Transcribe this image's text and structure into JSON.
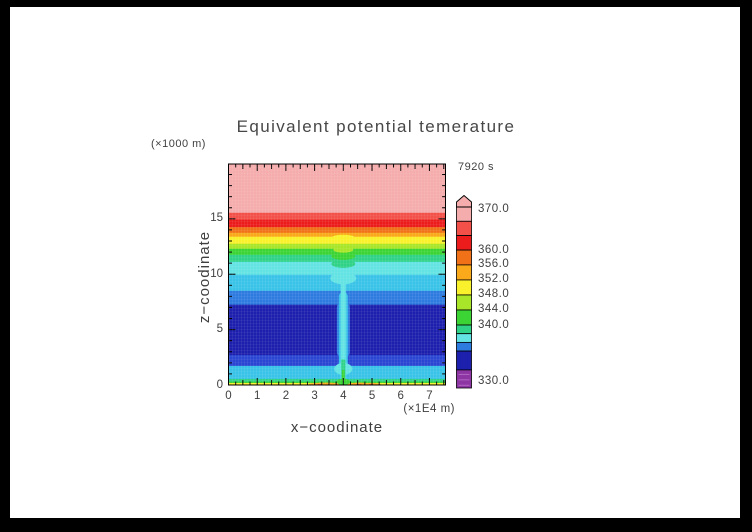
{
  "window": {
    "frame_color": "#000000",
    "page_color": "#ffffff"
  },
  "header": {
    "title": "Equivalent potential temerature",
    "y_axis_unit": "(×1000 m)",
    "time_label": "7920 s"
  },
  "axes": {
    "x": {
      "label": "x−coodinate",
      "unit": "(×1E4 m)",
      "tick_labels": [
        "0",
        "1",
        "2",
        "3",
        "4",
        "5",
        "6",
        "7"
      ],
      "tick_values": [
        0,
        1,
        2,
        3,
        4,
        5,
        6,
        7
      ],
      "range": [
        0,
        7.56
      ],
      "minor_step": 0.25
    },
    "z": {
      "label": "z−coodinate",
      "tick_labels": [
        "0",
        "5",
        "10",
        "15"
      ],
      "tick_values": [
        0,
        5,
        10,
        15
      ],
      "range": [
        0,
        19.95
      ],
      "minor_step": 1
    }
  },
  "chart_data": {
    "type": "heatmap",
    "title": "Equivalent potential temerature",
    "time": "7920 s",
    "x_range": [
      0,
      7.56
    ],
    "z_range": [
      0,
      19.95
    ],
    "palette": {
      "pink": "#F5ACAC",
      "salmon": "#F25048",
      "red": "#EC1C1C",
      "orangered": "#F07118",
      "orange": "#F9A919",
      "yellow": "#F8F12B",
      "greenyellow": "#A9E528",
      "green": "#3CD434",
      "teal": "#2FD287",
      "lightcyan": "#63E3E3",
      "skycyan": "#3AC3E8",
      "dodger": "#2E7BE0",
      "navy": "#1D1FAD",
      "medblue": "#2A46D2",
      "purple": "#8C35A3",
      "hatch": "#B266C2"
    },
    "layers": [
      {
        "color": "pink",
        "z_from": 15.55,
        "z_to": 19.95
      },
      {
        "color": "salmon",
        "z_from": 14.92,
        "z_to": 15.55
      },
      {
        "color": "red",
        "z_from": 14.25,
        "z_to": 14.92
      },
      {
        "color": "orangered",
        "z_from": 13.74,
        "z_to": 14.25
      },
      {
        "color": "orange",
        "z_from": 13.38,
        "z_to": 13.74
      },
      {
        "color": "yellow",
        "z_from": 12.75,
        "z_to": 13.38
      },
      {
        "color": "greenyellow",
        "z_from": 12.3,
        "z_to": 12.75
      },
      {
        "color": "green",
        "z_from": 11.75,
        "z_to": 12.3
      },
      {
        "color": "teal",
        "z_from": 11.12,
        "z_to": 11.75
      },
      {
        "color": "lightcyan",
        "z_from": 9.95,
        "z_to": 11.12
      },
      {
        "color": "skycyan",
        "z_from": 8.5,
        "z_to": 9.95
      },
      {
        "color": "dodger",
        "z_from": 7.25,
        "z_to": 8.5
      },
      {
        "color": "navy",
        "z_from": 2.7,
        "z_to": 7.25
      },
      {
        "color": "medblue",
        "z_from": 1.72,
        "z_to": 2.7
      },
      {
        "color": "skycyan",
        "z_from": 0.55,
        "z_to": 1.72
      },
      {
        "color": "teal",
        "z_from": 0.3,
        "z_to": 0.55
      },
      {
        "color": "green",
        "z_from": 0.18,
        "z_to": 0.3
      },
      {
        "color": "yellow",
        "z_from": 0.0,
        "z_to": 0.18
      }
    ],
    "updraft_plume": {
      "x_center": 4.0,
      "z_top": 10.0,
      "channel_color": "lightcyan",
      "halo_colors": [
        "skycyan",
        "dodger"
      ],
      "core_colors": [
        "teal",
        "green"
      ]
    },
    "surface_layer": {
      "warm_patch_x": [
        2.8,
        5.3
      ],
      "patch_color": "orange",
      "speck_color": "red",
      "plume_foot_color": "green"
    },
    "colorbar": {
      "arrow_color": "pink",
      "segments": [
        {
          "color": "pink",
          "f0": 0.0,
          "f1": 0.079
        },
        {
          "color": "salmon",
          "f0": 0.079,
          "f1": 0.158
        },
        {
          "color": "red",
          "f0": 0.158,
          "f1": 0.238
        },
        {
          "color": "orangered",
          "f0": 0.238,
          "f1": 0.32
        },
        {
          "color": "orange",
          "f0": 0.32,
          "f1": 0.403
        },
        {
          "color": "yellow",
          "f0": 0.403,
          "f1": 0.486
        },
        {
          "color": "greenyellow",
          "f0": 0.486,
          "f1": 0.569
        },
        {
          "color": "green",
          "f0": 0.569,
          "f1": 0.652
        },
        {
          "color": "teal",
          "f0": 0.652,
          "f1": 0.7
        },
        {
          "color": "lightcyan",
          "f0": 0.7,
          "f1": 0.748
        },
        {
          "color": "dodger",
          "f0": 0.748,
          "f1": 0.796
        },
        {
          "color": "navy",
          "f0": 0.796,
          "f1": 0.9
        },
        {
          "color": "purple",
          "f0": 0.9,
          "f1": 1.0
        }
      ],
      "labels": [
        {
          "text": "370.0",
          "f": 0.015
        },
        {
          "text": "360.0",
          "f": 0.238
        },
        {
          "text": "356.0",
          "f": 0.32
        },
        {
          "text": "352.0",
          "f": 0.403
        },
        {
          "text": "348.0",
          "f": 0.486
        },
        {
          "text": "344.0",
          "f": 0.569
        },
        {
          "text": "340.0",
          "f": 0.652
        },
        {
          "text": "330.0",
          "f": 0.965
        }
      ]
    }
  }
}
